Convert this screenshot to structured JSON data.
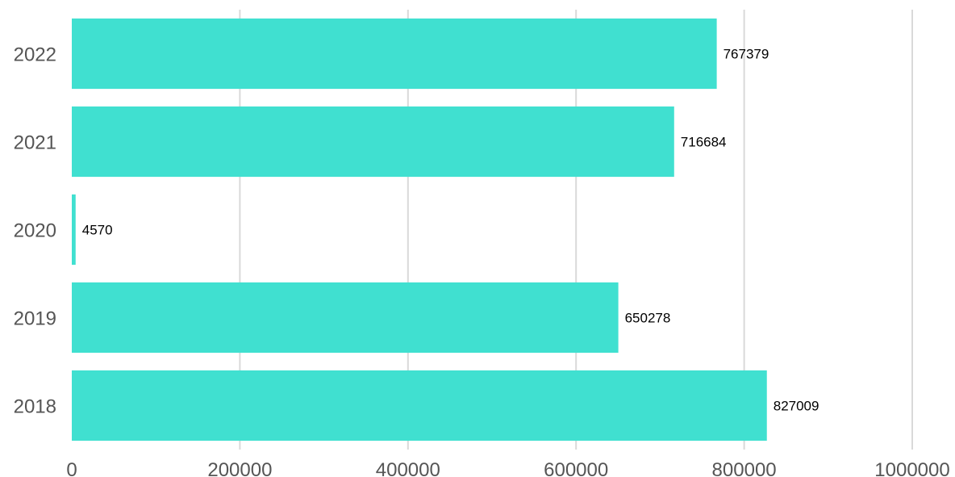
{
  "chart_data": {
    "type": "bar",
    "orientation": "horizontal",
    "categories": [
      "2022",
      "2021",
      "2020",
      "2019",
      "2018"
    ],
    "values": [
      767379,
      716684,
      4570,
      650278,
      827009
    ],
    "xlim": [
      0,
      1000000
    ],
    "x_ticks": [
      "0",
      "200000",
      "400000",
      "600000",
      "800000",
      "1000000"
    ],
    "grid": "vertical",
    "legend": "none",
    "bar_color": "#40E0D0",
    "title": "",
    "xlabel": "",
    "ylabel": ""
  }
}
